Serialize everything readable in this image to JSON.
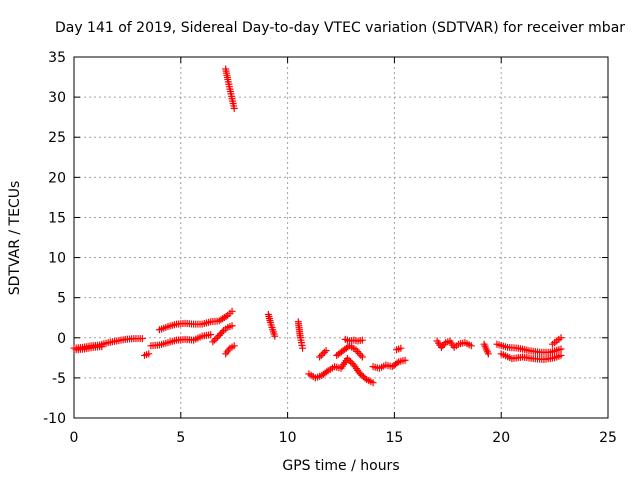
{
  "chart_data": {
    "type": "scatter",
    "title": "Day 141 of 2019, Sidereal Day-to-day VTEC variation (SDTVAR) for receiver mbar",
    "xlabel": "GPS time / hours",
    "ylabel": "SDTVAR / TECUs",
    "xlim": [
      0,
      25
    ],
    "ylim": [
      -10,
      35
    ],
    "xticks": [
      0,
      5,
      10,
      15,
      20,
      25
    ],
    "yticks": [
      -10,
      -5,
      0,
      5,
      10,
      15,
      20,
      25,
      30,
      35
    ],
    "grid": true,
    "marker": "+",
    "series": [
      {
        "name": "SDTVAR",
        "color": "#ff0000",
        "segments": [
          {
            "x": [
              0.0,
              0.4,
              0.8,
              1.2,
              1.6,
              2.0,
              2.4,
              2.8,
              3.2
            ],
            "y": [
              -1.3,
              -1.2,
              -1.0,
              -0.9,
              -0.6,
              -0.4,
              -0.2,
              -0.1,
              -0.1
            ]
          },
          {
            "x": [
              0.1,
              0.5,
              0.9,
              1.3
            ],
            "y": [
              -1.5,
              -1.4,
              -1.2,
              -1.1
            ]
          },
          {
            "x": [
              3.3,
              3.5
            ],
            "y": [
              -2.2,
              -2.0
            ]
          },
          {
            "x": [
              3.6,
              4.0,
              4.4,
              4.8,
              5.2,
              5.6,
              6.0,
              6.4
            ],
            "y": [
              -1.0,
              -0.9,
              -0.6,
              -0.3,
              -0.2,
              -0.3,
              0.2,
              0.4
            ]
          },
          {
            "x": [
              4.0,
              4.4,
              4.8,
              5.2,
              5.6,
              6.0,
              6.4,
              6.8,
              7.2,
              7.4
            ],
            "y": [
              1.0,
              1.4,
              1.7,
              1.8,
              1.7,
              1.7,
              2.0,
              2.1,
              2.8,
              3.3
            ]
          },
          {
            "x": [
              6.5,
              6.8,
              7.0,
              7.2,
              7.4
            ],
            "y": [
              -0.5,
              0.3,
              0.9,
              1.3,
              1.5
            ]
          },
          {
            "x": [
              7.1,
              7.3,
              7.5
            ],
            "y": [
              -2.0,
              -1.3,
              -1.0
            ]
          },
          {
            "x": [
              7.1,
              7.2,
              7.3,
              7.4,
              7.5
            ],
            "y": [
              33.5,
              32.2,
              31.0,
              29.8,
              28.6
            ]
          },
          {
            "x": [
              9.1,
              9.2,
              9.3,
              9.4
            ],
            "y": [
              2.9,
              1.9,
              1.0,
              0.2
            ]
          },
          {
            "x": [
              10.5,
              10.55,
              10.6,
              10.65,
              10.7
            ],
            "y": [
              2.0,
              1.0,
              0.0,
              -0.6,
              -1.3
            ]
          },
          {
            "x": [
              11.0,
              11.3,
              11.6,
              11.9,
              12.2,
              12.5,
              12.8,
              13.1,
              13.4,
              13.7,
              14.0
            ],
            "y": [
              -4.5,
              -5.0,
              -4.7,
              -4.1,
              -3.6,
              -3.8,
              -2.6,
              -3.4,
              -4.5,
              -5.2,
              -5.6
            ]
          },
          {
            "x": [
              11.5,
              11.8
            ],
            "y": [
              -2.4,
              -1.6
            ]
          },
          {
            "x": [
              12.3,
              12.6,
              12.9,
              13.2,
              13.5
            ],
            "y": [
              -2.2,
              -1.6,
              -1.0,
              -1.5,
              -2.4
            ]
          },
          {
            "x": [
              12.7,
              12.9,
              13.1,
              13.3,
              13.5
            ],
            "y": [
              -0.2,
              -0.4,
              -0.3,
              -0.4,
              -0.3
            ]
          },
          {
            "x": [
              14.0,
              14.3,
              14.6,
              14.9,
              15.2,
              15.5
            ],
            "y": [
              -3.6,
              -3.8,
              -3.4,
              -3.6,
              -3.0,
              -2.8
            ]
          },
          {
            "x": [
              15.1,
              15.3
            ],
            "y": [
              -1.5,
              -1.3
            ]
          },
          {
            "x": [
              17.0,
              17.2,
              17.4,
              17.6,
              17.8,
              18.0,
              18.3,
              18.6
            ],
            "y": [
              -0.4,
              -1.2,
              -0.6,
              -0.4,
              -1.2,
              -0.8,
              -0.6,
              -1.0
            ]
          },
          {
            "x": [
              19.2,
              19.4
            ],
            "y": [
              -0.8,
              -2.0
            ]
          },
          {
            "x": [
              19.8,
              20.3,
              20.8,
              21.3,
              21.8,
              22.3,
              22.8
            ],
            "y": [
              -0.8,
              -1.2,
              -1.3,
              -1.6,
              -1.8,
              -1.8,
              -1.4
            ]
          },
          {
            "x": [
              20.0,
              20.5,
              21.0,
              21.5,
              22.0,
              22.5,
              22.8
            ],
            "y": [
              -2.0,
              -2.6,
              -2.4,
              -2.6,
              -2.7,
              -2.5,
              -2.2
            ]
          },
          {
            "x": [
              22.4,
              22.6,
              22.8
            ],
            "y": [
              -0.8,
              -0.4,
              0.0
            ]
          }
        ]
      }
    ]
  }
}
